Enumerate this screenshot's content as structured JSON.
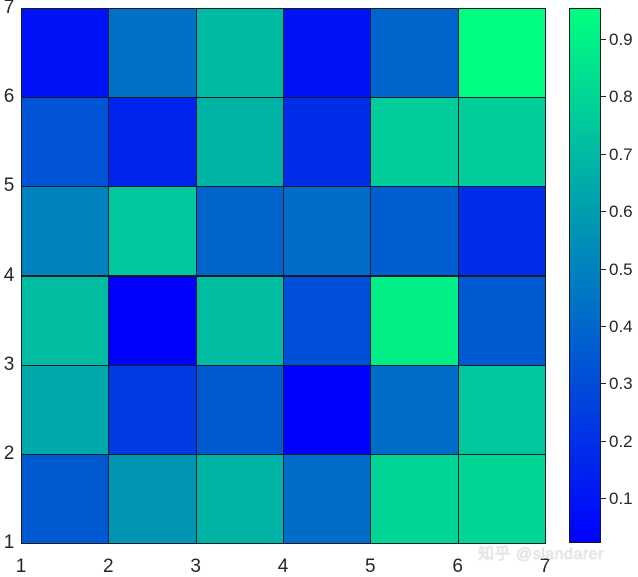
{
  "chart_data": {
    "type": "heatmap",
    "title": "",
    "xlabel": "",
    "ylabel": "",
    "colormap": "winter",
    "x_ticks": [
      "1",
      "2",
      "3",
      "4",
      "5",
      "6",
      "7"
    ],
    "y_ticks": [
      "1",
      "2",
      "3",
      "4",
      "5",
      "6",
      "7"
    ],
    "xlim": [
      1,
      7
    ],
    "ylim": [
      1,
      7
    ],
    "grid_rows_top_to_bottom": [
      [
        0.09,
        0.44,
        0.7,
        0.09,
        0.39,
        0.95
      ],
      [
        0.33,
        0.15,
        0.68,
        0.19,
        0.77,
        0.77
      ],
      [
        0.5,
        0.75,
        0.39,
        0.42,
        0.37,
        0.19
      ],
      [
        0.71,
        0.02,
        0.71,
        0.31,
        0.9,
        0.35
      ],
      [
        0.64,
        0.24,
        0.35,
        0.02,
        0.42,
        0.75
      ],
      [
        0.35,
        0.57,
        0.68,
        0.42,
        0.8,
        0.8
      ]
    ],
    "colorbar": {
      "range": [
        0.022,
        0.954
      ],
      "ticks": [
        "0.1",
        "0.2",
        "0.3",
        "0.4",
        "0.5",
        "0.6",
        "0.7",
        "0.8",
        "0.9"
      ],
      "low_color": "#0000ff",
      "high_color": "#00ff80"
    },
    "legend": null
  },
  "watermark": "知乎 @slandarer"
}
